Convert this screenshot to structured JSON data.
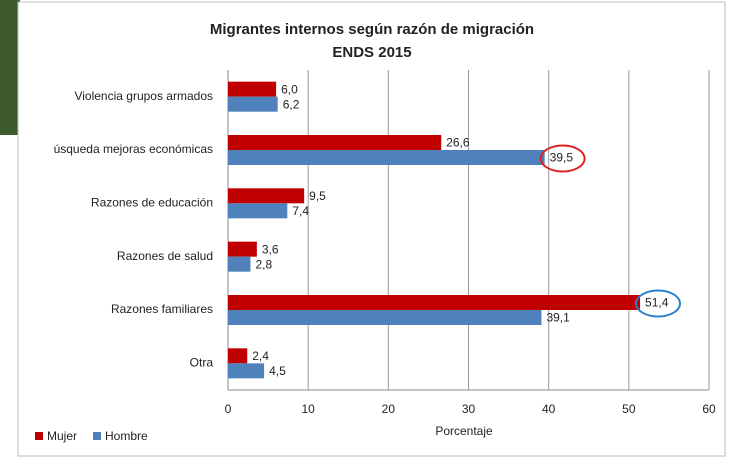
{
  "chart_data": {
    "type": "hbar",
    "title": "Migrantes internos según razón de migración",
    "subtitle": "ENDS 2015",
    "categories": [
      "Violencia grupos armados",
      "úsqueda mejoras económicas",
      "Razones de educación",
      "Razones de salud",
      "Razones familiares",
      "Otra"
    ],
    "series": [
      {
        "name": "Mujer",
        "color": "#c00000",
        "values": [
          6.0,
          26.6,
          9.5,
          3.6,
          51.4,
          2.4
        ],
        "value_labels": [
          "6,0",
          "26,6",
          "9,5",
          "3,6",
          "51,4",
          "2,4"
        ]
      },
      {
        "name": "Hombre",
        "color": "#4f81bd",
        "values": [
          6.2,
          39.5,
          7.4,
          2.8,
          39.1,
          4.5
        ],
        "value_labels": [
          "6,2",
          "39,5",
          "7,4",
          "2,8",
          "39,1",
          "4,5"
        ]
      }
    ],
    "xlabel": "Porcentaje",
    "xlim": [
      0,
      60
    ],
    "xticks": [
      0,
      10,
      20,
      30,
      40,
      50,
      60
    ],
    "grid": true,
    "legend": "bottom-left"
  }
}
